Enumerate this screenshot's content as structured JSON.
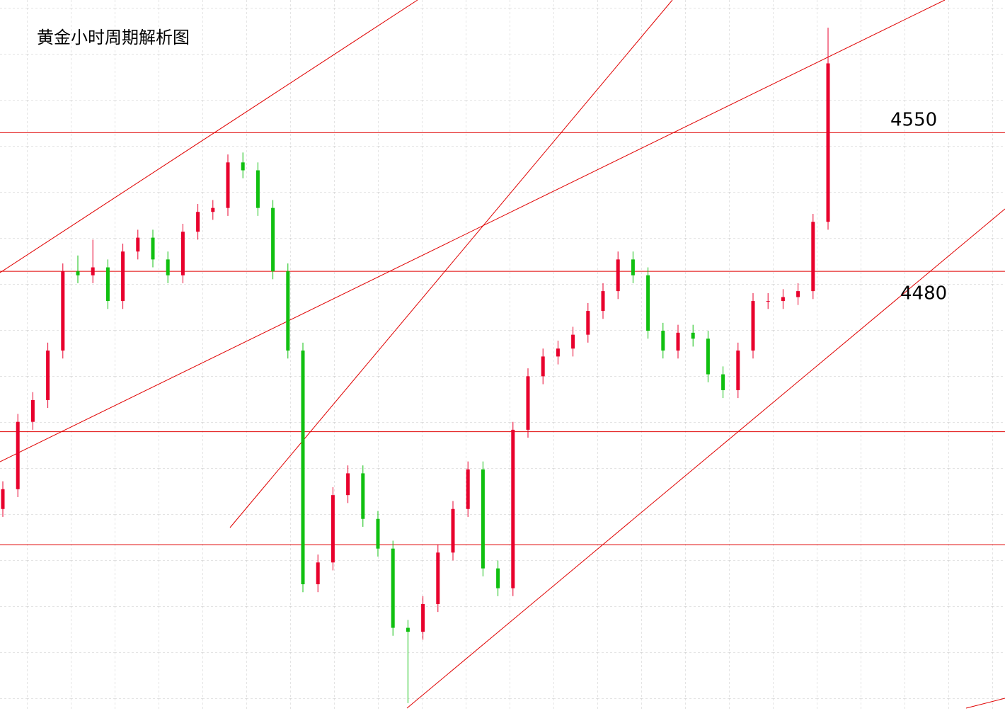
{
  "chart_data": {
    "type": "candlestick",
    "title": "黄金小时周期解析图",
    "open": [
      4360,
      4370,
      4404,
      4415,
      4440,
      4480,
      4478,
      4482,
      4465,
      4490,
      4497,
      4486,
      4478,
      4500,
      4510,
      4512,
      4535,
      4531,
      4512,
      4480,
      4440,
      4322,
      4333,
      4367,
      4378,
      4355,
      4340,
      4300,
      4298,
      4312,
      4338,
      4360,
      4380,
      4330,
      4320,
      4400,
      4427,
      4437,
      4441,
      4448,
      4460,
      4470,
      4486,
      4478,
      4450,
      4440,
      4449,
      4446,
      4428,
      4420,
      4440,
      4465,
      4465,
      4467,
      4470,
      4505
    ],
    "high": [
      4374,
      4408,
      4419,
      4444,
      4484,
      4488,
      4496,
      4486,
      4494,
      4501,
      4501,
      4490,
      4504,
      4514,
      4516,
      4539,
      4540,
      4535,
      4516,
      4484,
      4444,
      4337,
      4371,
      4382,
      4382,
      4359,
      4344,
      4304,
      4316,
      4342,
      4364,
      4384,
      4384,
      4334,
      4404,
      4431,
      4441,
      4445,
      4452,
      4464,
      4474,
      4490,
      4490,
      4482,
      4454,
      4453,
      4453,
      4450,
      4432,
      4444,
      4469,
      4469,
      4471,
      4474,
      4509,
      4603
    ],
    "low": [
      4356,
      4366,
      4400,
      4411,
      4436,
      4474,
      4474,
      4461,
      4461,
      4486,
      4482,
      4474,
      4474,
      4496,
      4506,
      4508,
      4527,
      4508,
      4476,
      4436,
      4318,
      4318,
      4329,
      4363,
      4351,
      4336,
      4296,
      4262,
      4294,
      4308,
      4334,
      4356,
      4326,
      4316,
      4316,
      4396,
      4423,
      4433,
      4437,
      4444,
      4456,
      4466,
      4474,
      4446,
      4436,
      4436,
      4442,
      4424,
      4416,
      4416,
      4436,
      4461,
      4461,
      4463,
      4466,
      4501
    ],
    "close": [
      4370,
      4404,
      4415,
      4440,
      4480,
      4478,
      4482,
      4465,
      4490,
      4497,
      4486,
      4478,
      4500,
      4510,
      4512,
      4535,
      4531,
      4512,
      4480,
      4440,
      4322,
      4333,
      4367,
      4378,
      4355,
      4340,
      4300,
      4298,
      4312,
      4338,
      4360,
      4380,
      4330,
      4320,
      4400,
      4427,
      4437,
      4441,
      4448,
      4460,
      4470,
      4486,
      4478,
      4450,
      4440,
      4449,
      4446,
      4428,
      4420,
      4440,
      4465,
      4465,
      4467,
      4470,
      4505,
      4585
    ],
    "up_color": "#e8002c",
    "down_color": "#10c010",
    "ylim": [
      4258,
      4617
    ],
    "hlines": [
      4550,
      4480,
      4399,
      4342
    ],
    "hline_color": "#e00000"
  }
}
